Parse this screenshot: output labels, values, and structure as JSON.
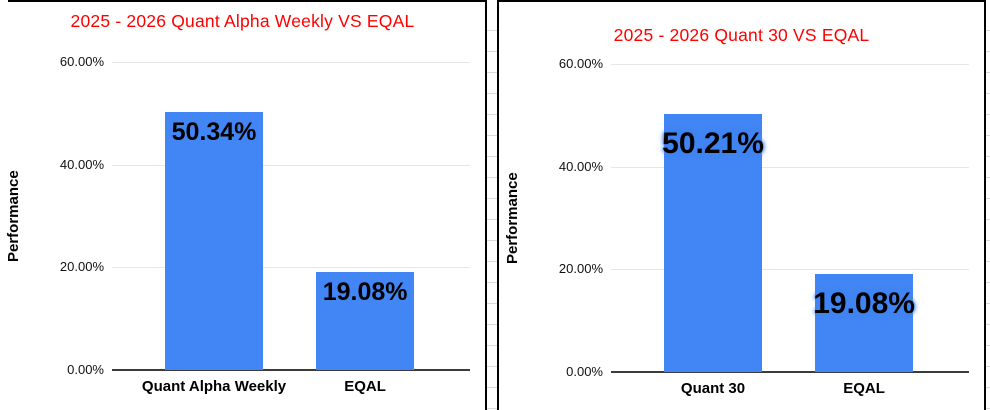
{
  "window": {
    "background": "#ffffff",
    "spreadsheet_row_line_color": "#d9d9d9",
    "panel_border_color": "#000000"
  },
  "chart_data": [
    {
      "type": "bar",
      "title": "2025 - 2026 Quant Alpha Weekly VS EQAL",
      "title_color": "#ff0000",
      "categories": [
        "Quant Alpha Weekly",
        "EQAL"
      ],
      "values": [
        50.34,
        19.08
      ],
      "data_labels": [
        "50.34%",
        "19.08%"
      ],
      "xlabel": "",
      "ylabel": "Performance",
      "ylim": [
        0,
        60
      ],
      "y_ticks": [
        0,
        20,
        40,
        60
      ],
      "y_tick_labels": [
        "0.00%",
        "20.00%",
        "40.00%",
        "60.00%"
      ],
      "bar_color": "#4285f4",
      "label_color": "#000000",
      "grid": true,
      "legend": "none"
    },
    {
      "type": "bar",
      "title": "2025 - 2026 Quant 30 VS EQAL",
      "title_color": "#ff0000",
      "categories": [
        "Quant 30",
        "EQAL"
      ],
      "values": [
        50.21,
        19.08
      ],
      "data_labels": [
        "50.21%",
        "19.08%"
      ],
      "xlabel": "",
      "ylabel": "Performance",
      "ylim": [
        0,
        60
      ],
      "y_ticks": [
        0,
        20,
        40,
        60
      ],
      "y_tick_labels": [
        "0.00%",
        "20.00%",
        "40.00%",
        "60.00%"
      ],
      "bar_color": "#4285f4",
      "label_color": "#000000",
      "grid": true,
      "legend": "none"
    }
  ]
}
